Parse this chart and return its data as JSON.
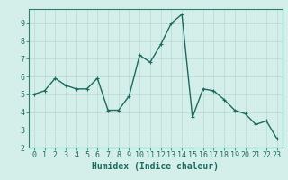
{
  "x": [
    0,
    1,
    2,
    3,
    4,
    5,
    6,
    7,
    8,
    9,
    10,
    11,
    12,
    13,
    14,
    15,
    16,
    17,
    18,
    19,
    20,
    21,
    22,
    23
  ],
  "y": [
    5.0,
    5.2,
    5.9,
    5.5,
    5.3,
    5.3,
    5.9,
    4.1,
    4.1,
    4.9,
    7.2,
    6.8,
    7.8,
    9.0,
    9.5,
    3.7,
    5.3,
    5.2,
    4.7,
    4.1,
    3.9,
    3.3,
    3.5,
    2.5
  ],
  "bg_color": "#d4eeea",
  "line_color": "#1a6b5e",
  "marker_color": "#1a6b5e",
  "grid_color": "#b8d8d4",
  "axis_color": "#1a6b5e",
  "spine_color": "#2a8070",
  "xlabel": "Humidex (Indice chaleur)",
  "xlim_min": -0.5,
  "xlim_max": 23.5,
  "ylim_min": 2.0,
  "ylim_max": 9.8,
  "yticks": [
    2,
    3,
    4,
    5,
    6,
    7,
    8,
    9
  ],
  "xticks": [
    0,
    1,
    2,
    3,
    4,
    5,
    6,
    7,
    8,
    9,
    10,
    11,
    12,
    13,
    14,
    15,
    16,
    17,
    18,
    19,
    20,
    21,
    22,
    23
  ],
  "xlabel_fontsize": 7.0,
  "tick_fontsize": 6.0,
  "line_width": 1.0,
  "marker_size": 3.0
}
